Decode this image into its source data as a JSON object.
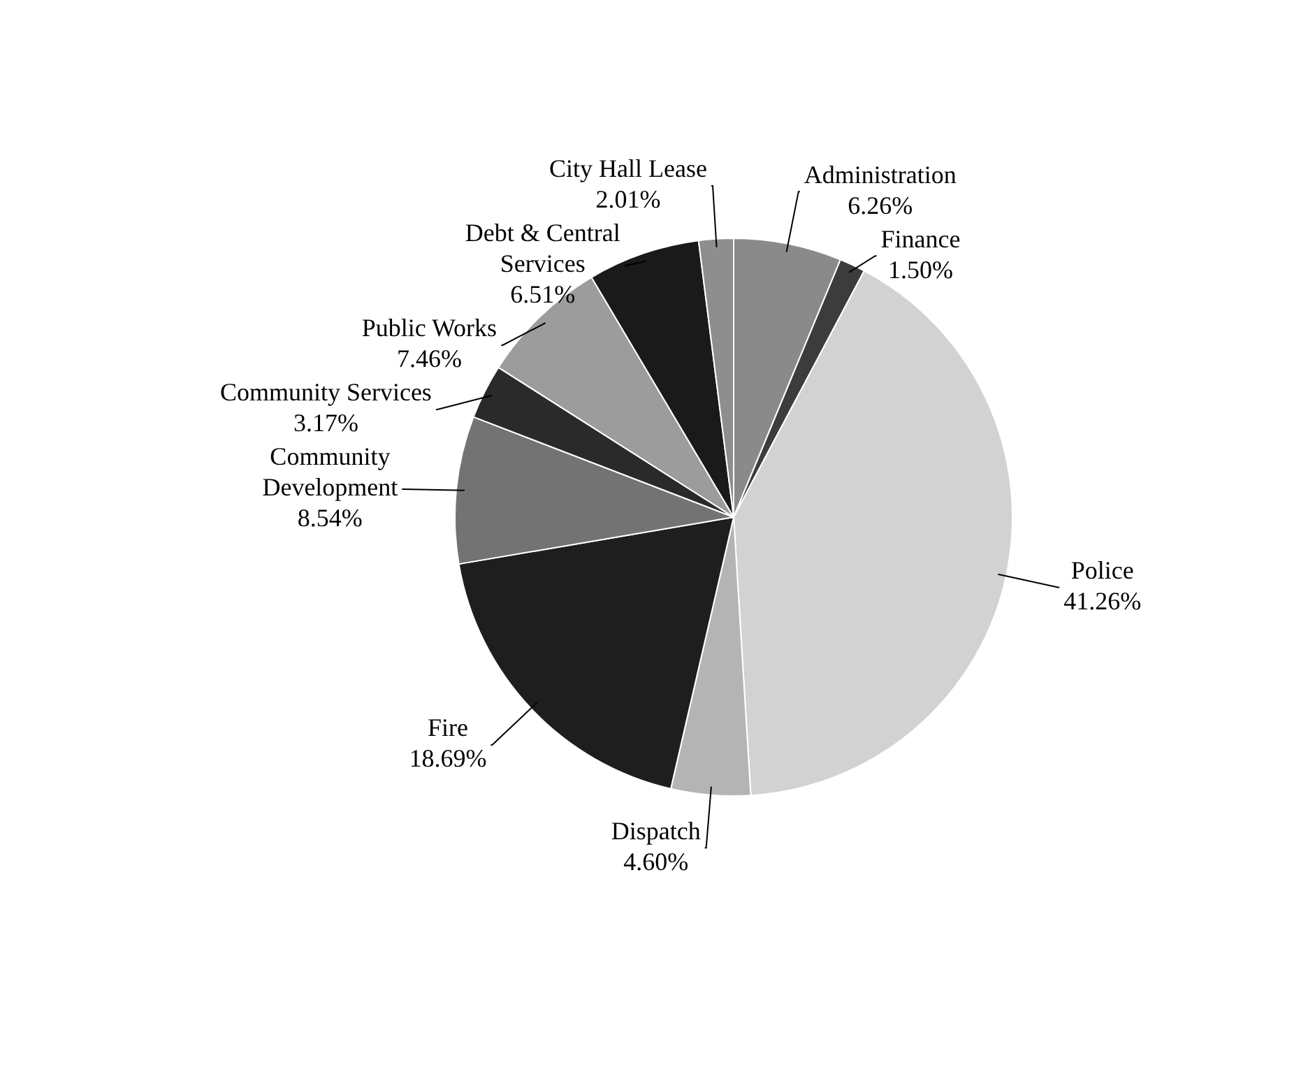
{
  "chart_data": {
    "type": "pie",
    "categories": [
      "Administration",
      "Finance",
      "Police",
      "Dispatch",
      "Fire",
      "Community Development",
      "Community Services",
      "Public Works",
      "Debt & Central Services",
      "City Hall Lease"
    ],
    "values": [
      6.26,
      1.5,
      41.26,
      4.6,
      18.69,
      8.54,
      3.17,
      7.46,
      6.51,
      2.01
    ],
    "value_labels": [
      "6.26%",
      "1.50%",
      "41.26%",
      "4.60%",
      "18.69%",
      "8.54%",
      "3.17%",
      "7.46%",
      "6.51%",
      "2.01%"
    ],
    "colors": [
      "#8a8a8a",
      "#3c3c3c",
      "#d2d2d2",
      "#b4b4b4",
      "#1e1e1e",
      "#737373",
      "#2a2a2a",
      "#9c9c9c",
      "#1a1a1a",
      "#8e8e8e"
    ],
    "legend": false
  }
}
